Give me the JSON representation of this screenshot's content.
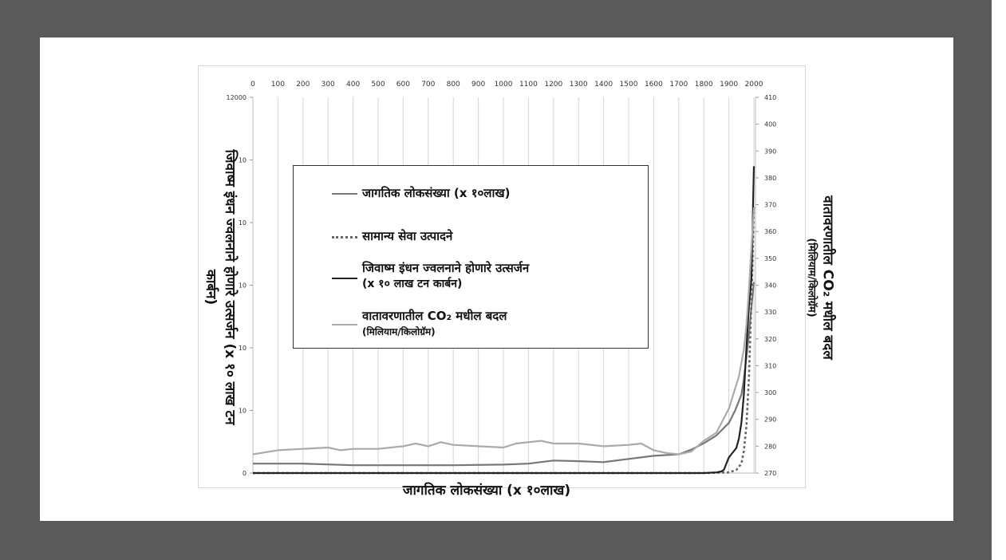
{
  "chart_data": {
    "type": "line",
    "x_ticks_top": [
      "0",
      "100",
      "200",
      "300",
      "400",
      "500",
      "600",
      "700",
      "800",
      "900",
      "1000",
      "1100",
      "1200",
      "1300",
      "1400",
      "1500",
      "1600",
      "1700",
      "1800",
      "1900",
      "2000"
    ],
    "xlim": [
      0,
      2000
    ],
    "y_left_ticks": [
      "12000",
      "10",
      "10",
      "10",
      "10",
      "10",
      "0"
    ],
    "y_left_lim": [
      0,
      12000
    ],
    "y_right_ticks": [
      "410",
      "400",
      "390",
      "380",
      "370",
      "360",
      "350",
      "340",
      "330",
      "320",
      "310",
      "300",
      "290",
      "280",
      "270"
    ],
    "y_right_lim": [
      270,
      410
    ],
    "xlabel": "जागतिक लोकसंख्या (x १०लाख)",
    "ylabel_left": "जिवाष्म इंधन ज्वलनाने होणारे उत्सर्जन (x १० लाख टन कार्बन)",
    "ylabel_right": "वातावरणातील CO₂ मधील बदल",
    "ylabel_right_sub": "(मिलियाम/किलोग्रॅम)",
    "legend_position": "upper-left",
    "grid": true,
    "series": [
      {
        "name": "जागतिक लोकसंख्या (x १०लाख)",
        "color": "#777777",
        "style": "solid",
        "axis": "left",
        "x": [
          0,
          200,
          400,
          600,
          800,
          1000,
          1100,
          1200,
          1300,
          1400,
          1500,
          1600,
          1700,
          1750,
          1800,
          1850,
          1900,
          1925,
          1950,
          1960,
          1970,
          1980,
          1990,
          2000
        ],
        "y": [
          300,
          300,
          250,
          250,
          250,
          270,
          300,
          400,
          380,
          350,
          450,
          550,
          600,
          750,
          950,
          1200,
          1600,
          2000,
          2500,
          3000,
          3700,
          4400,
          5300,
          6100
        ]
      },
      {
        "name": "सामान्य सेवा उत्पादने",
        "color": "#666666",
        "style": "dotted",
        "axis": "left",
        "x": [
          0,
          500,
          1000,
          1500,
          1800,
          1900,
          1930,
          1950,
          1960,
          1970,
          1980,
          1990,
          2000
        ],
        "y": [
          0,
          0,
          0,
          0,
          0,
          20,
          100,
          300,
          700,
          1500,
          3000,
          5500,
          8500
        ]
      },
      {
        "name": "जिवाष्म इंधन ज्वलनाने होणारे उत्सर्जन",
        "name_sub": "(x १० लाख टन कार्बन)",
        "color": "#222222",
        "style": "solid",
        "axis": "left",
        "x": [
          0,
          1500,
          1750,
          1800,
          1850,
          1870,
          1880,
          1900,
          1910,
          1920,
          1930,
          1940,
          1950,
          1960,
          1970,
          1980,
          1990,
          2000
        ],
        "y": [
          0,
          0,
          0,
          0,
          20,
          50,
          100,
          500,
          600,
          700,
          800,
          1100,
          1600,
          2500,
          4000,
          5300,
          6200,
          9800
        ]
      },
      {
        "name": "वातावरणातील CO₂ मधील बदल",
        "name_sub": "(मिलियाम/किलोग्रॅम)",
        "color": "#aaaaaa",
        "style": "solid",
        "axis": "right",
        "x": [
          0,
          100,
          200,
          300,
          350,
          400,
          500,
          600,
          650,
          700,
          750,
          800,
          900,
          1000,
          1050,
          1100,
          1150,
          1200,
          1300,
          1400,
          1500,
          1550,
          1600,
          1650,
          1700,
          1750,
          1800,
          1850,
          1900,
          1920,
          1940,
          1960,
          1970,
          1980,
          1990,
          2000
        ],
        "y": [
          277,
          278.5,
          279,
          279.5,
          278.5,
          279,
          279,
          280,
          281,
          280,
          281.5,
          280.5,
          280,
          279.5,
          281,
          281.5,
          282,
          281,
          281,
          280,
          280.5,
          281,
          278.5,
          277.5,
          277,
          278,
          282,
          285,
          294,
          300,
          306,
          316,
          325,
          338,
          354,
          369
        ]
      }
    ]
  }
}
